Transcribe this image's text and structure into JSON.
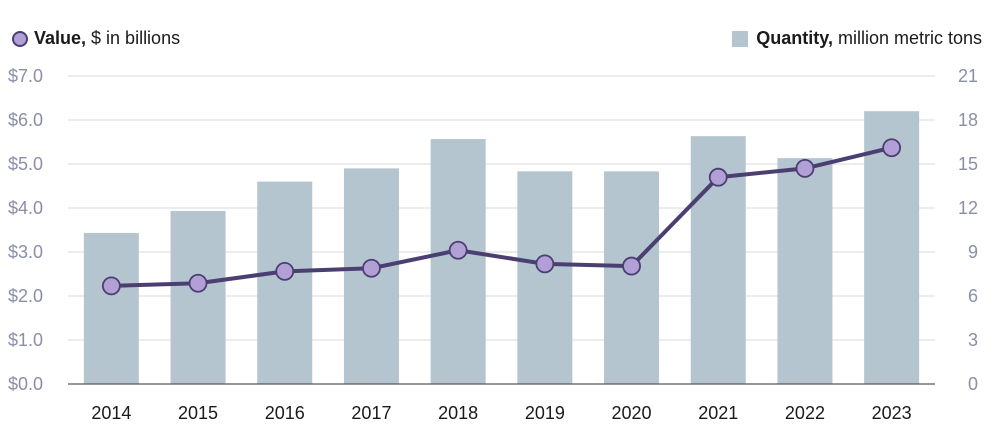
{
  "legend": {
    "value_bold": "Value,",
    "value_rest": "$ in billions",
    "quantity_bold": "Quantity,",
    "quantity_rest": "million metric tons"
  },
  "colors": {
    "bar": "#b5c5cf",
    "line": "#4b3f72",
    "marker_fill": "#b19fd6",
    "grid": "#d9d9d9",
    "axis_text": "#8a8fa8"
  },
  "chart_data": {
    "type": "bar+line",
    "categories": [
      "2014",
      "2015",
      "2016",
      "2017",
      "2018",
      "2019",
      "2020",
      "2021",
      "2022",
      "2023"
    ],
    "series": [
      {
        "name": "Quantity, million metric tons",
        "type": "bar",
        "axis": "right",
        "values": [
          10.3,
          11.8,
          13.8,
          14.7,
          16.7,
          14.5,
          14.5,
          16.9,
          15.4,
          18.6
        ]
      },
      {
        "name": "Value, $ in billions",
        "type": "line",
        "axis": "left",
        "values": [
          2.23,
          2.29,
          2.56,
          2.63,
          3.04,
          2.73,
          2.68,
          4.7,
          4.9,
          5.37
        ]
      }
    ],
    "y_left": {
      "range": [
        0,
        7
      ],
      "ticks": [
        "$0.0",
        "$1.0",
        "$2.0",
        "$3.0",
        "$4.0",
        "$5.0",
        "$6.0",
        "$7.0"
      ]
    },
    "y_right": {
      "range": [
        0,
        21
      ],
      "ticks": [
        "0",
        "3",
        "6",
        "9",
        "12",
        "15",
        "18",
        "21"
      ]
    },
    "grid": true,
    "legend_placement": "top"
  }
}
